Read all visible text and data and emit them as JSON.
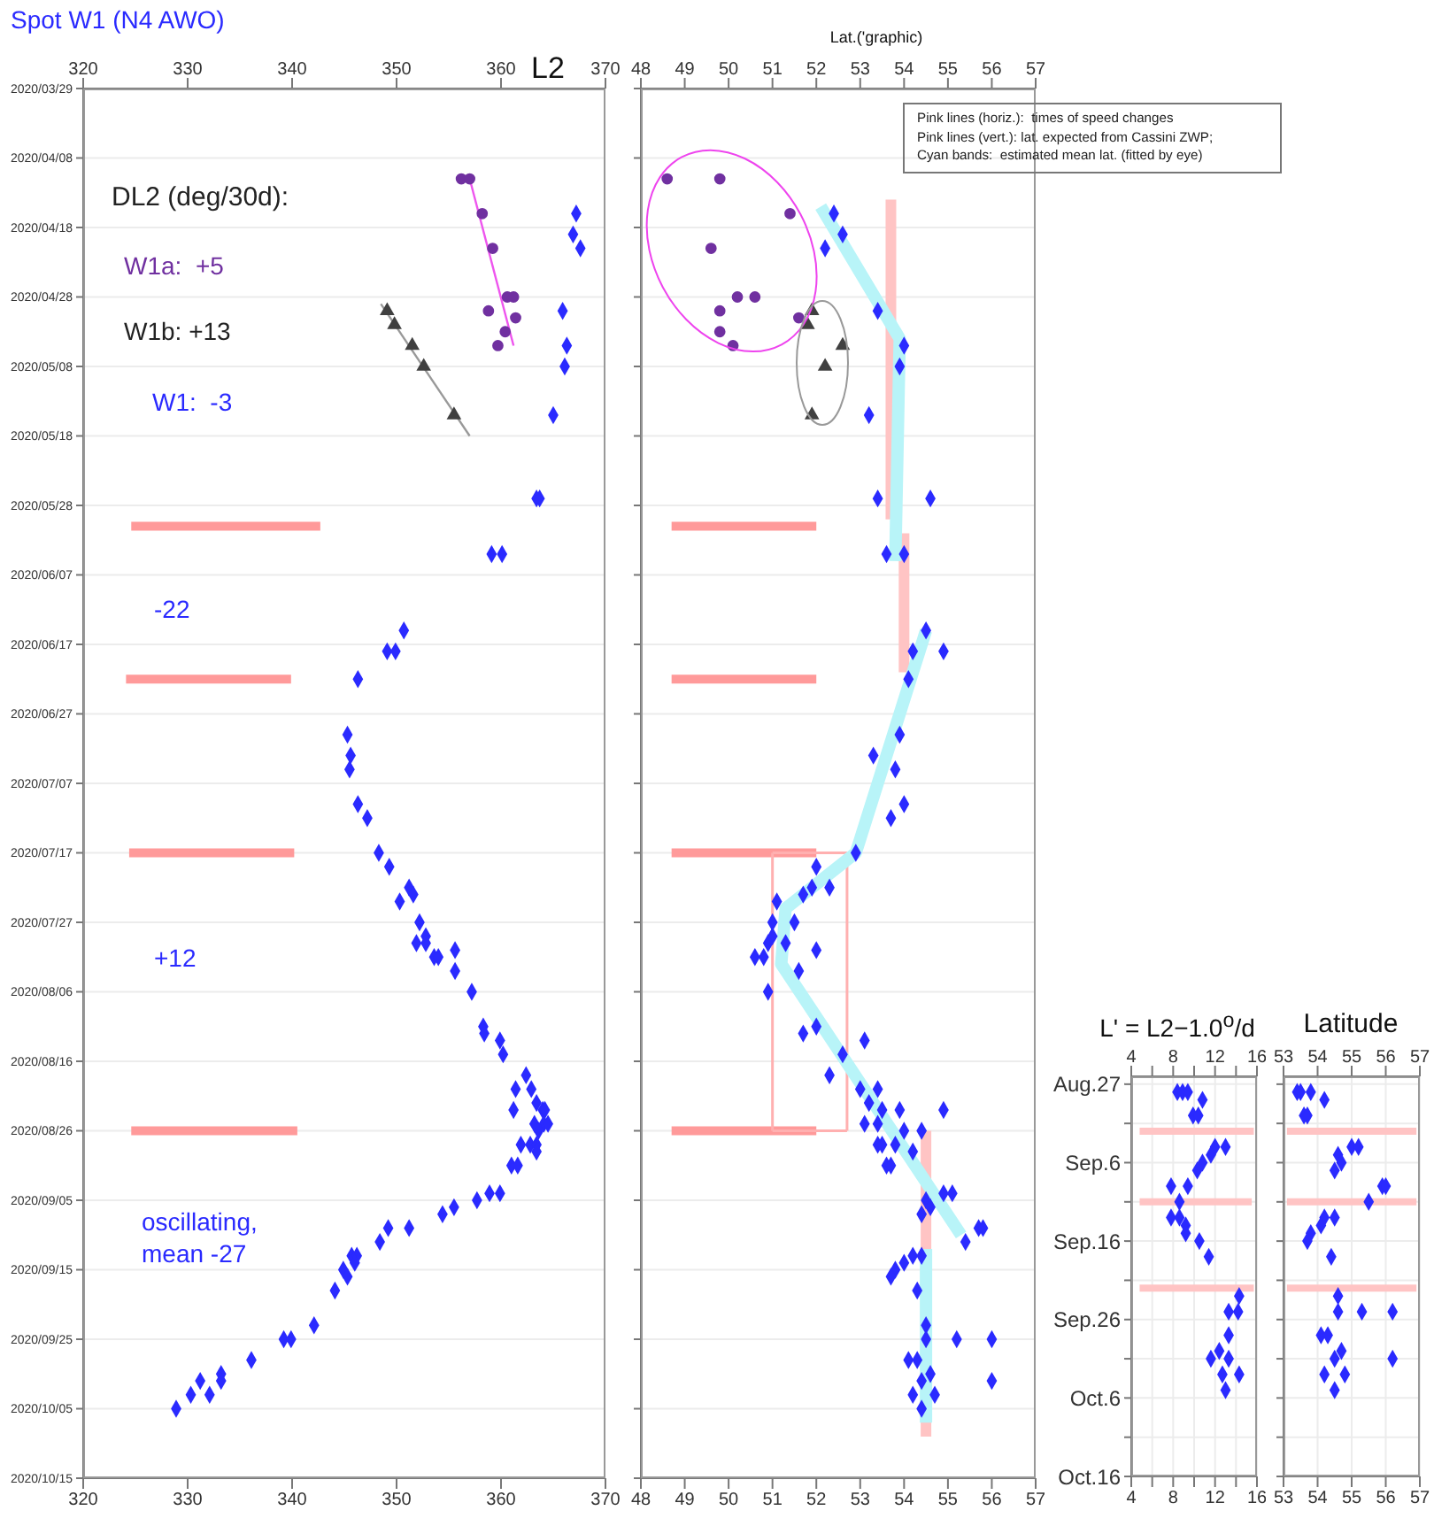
{
  "chart_data": [
    {
      "type": "scatter",
      "orientation": "horizontal",
      "title": "Spot W1 (N4 AWO)",
      "x2label": "L2",
      "xlim": [
        320,
        370
      ],
      "xticks": [
        320,
        330,
        340,
        350,
        360,
        370
      ],
      "x2lim": [
        320,
        370
      ],
      "x2ticks": [
        320,
        330,
        340,
        350,
        360,
        370
      ],
      "ylim": [
        "2020-10-15",
        "2020-03-29"
      ],
      "yticks": [
        {
          "value": "2020-03-29",
          "label": "2020/03/29"
        },
        {
          "value": "2020-04-08",
          "label": "2020/04/08"
        },
        {
          "value": "2020-04-18",
          "label": "2020/04/18"
        },
        {
          "value": "2020-04-28",
          "label": "2020/04/28"
        },
        {
          "value": "2020-05-08",
          "label": "2020/05/08"
        },
        {
          "value": "2020-05-18",
          "label": "2020/05/18"
        },
        {
          "value": "2020-05-28",
          "label": "2020/05/28"
        },
        {
          "value": "2020-06-07",
          "label": "2020/06/07"
        },
        {
          "value": "2020-06-17",
          "label": "2020/06/17"
        },
        {
          "value": "2020-06-27",
          "label": "2020/06/27"
        },
        {
          "value": "2020-07-07",
          "label": "2020/07/07"
        },
        {
          "value": "2020-07-17",
          "label": "2020/07/17"
        },
        {
          "value": "2020-07-27",
          "label": "2020/07/27"
        },
        {
          "value": "2020-08-06",
          "label": "2020/08/06"
        },
        {
          "value": "2020-08-16",
          "label": "2020/08/16"
        },
        {
          "value": "2020-08-26",
          "label": "2020/08/26"
        },
        {
          "value": "2020-09-05",
          "label": "2020/09/05"
        },
        {
          "value": "2020-09-15",
          "label": "2020/09/15"
        },
        {
          "value": "2020-09-25",
          "label": "2020/09/25"
        },
        {
          "value": "2020-10-05",
          "label": "2020/10/05"
        },
        {
          "value": "2020-10-15",
          "label": "2020/10/15"
        }
      ],
      "grid": "y",
      "annotations": [
        "DL2 (deg/30d):",
        "W1a:  +5",
        "W1b: +13",
        "W1:  -3",
        "-22",
        "+12",
        "oscillating, mean -27"
      ],
      "series": [
        {
          "type": "line",
          "marker": "none",
          "color": "#ff9a9a",
          "values": [
            324.6,
            342.7
          ],
          "x": [
            "2020-05-31",
            "2020-05-31"
          ]
        },
        {
          "type": "line",
          "marker": "none",
          "color": "#ff9a9a",
          "values": [
            324.1,
            339.9
          ],
          "x": [
            "2020-06-22",
            "2020-06-22"
          ]
        },
        {
          "type": "line",
          "marker": "none",
          "color": "#ff9a9a",
          "values": [
            324.4,
            340.2
          ],
          "x": [
            "2020-07-17",
            "2020-07-17"
          ]
        },
        {
          "type": "line",
          "marker": "none",
          "color": "#ff9a9a",
          "values": [
            324.6,
            340.5
          ],
          "x": [
            "2020-08-26",
            "2020-08-26"
          ]
        },
        {
          "type": "line",
          "marker": "none",
          "color": "#ee55ee",
          "values": [
            357.0,
            361.2
          ],
          "x": [
            "2020-04-11",
            "2020-05-05"
          ]
        },
        {
          "type": "line",
          "marker": "none",
          "color": "#999999",
          "values": [
            348.5,
            357.0
          ],
          "x": [
            "2020-04-29",
            "2020-05-18"
          ]
        },
        {
          "type": "scatter",
          "marker": "diamond",
          "color": "#2a2aff",
          "values": [
            367.2,
            366.9,
            367.6,
            365.9,
            366.3,
            366.1,
            365.0,
            363.4,
            363.7,
            359.1,
            360.1,
            350.7,
            349.1,
            349.9,
            346.3,
            345.3,
            345.6,
            345.5,
            346.3,
            347.2,
            348.3,
            349.3,
            351.2,
            351.6,
            350.3,
            352.2,
            352.8,
            352.8,
            351.9,
            355.6,
            353.6,
            354.0,
            355.6,
            357.2,
            358.3,
            358.4,
            359.9,
            360.2,
            362.4,
            361.4,
            362.9,
            363.4,
            361.2,
            364.0,
            364.2,
            363.2,
            364.1,
            364.5,
            363.6,
            361.9,
            362.8,
            363.4,
            363.4,
            361.0,
            361.6,
            358.9,
            359.9,
            357.7,
            355.5,
            354.4,
            349.2,
            351.2,
            348.4,
            345.7,
            346.2,
            346.0,
            344.9,
            345.3,
            344.1,
            342.1,
            339.2,
            339.9,
            336.1,
            333.2,
            331.2,
            333.2,
            330.3,
            332.1,
            328.9
          ],
          "x": [
            "2020-04-16",
            "2020-04-19",
            "2020-04-21",
            "2020-04-30",
            "2020-05-05",
            "2020-05-08",
            "2020-05-15",
            "2020-05-27",
            "2020-05-27",
            "2020-06-04",
            "2020-06-04",
            "2020-06-15",
            "2020-06-18",
            "2020-06-18",
            "2020-06-22",
            "2020-06-30",
            "2020-07-03",
            "2020-07-05",
            "2020-07-10",
            "2020-07-12",
            "2020-07-17",
            "2020-07-19",
            "2020-07-22",
            "2020-07-23",
            "2020-07-24",
            "2020-07-27",
            "2020-07-29",
            "2020-07-30",
            "2020-07-30",
            "2020-07-31",
            "2020-08-01",
            "2020-08-01",
            "2020-08-03",
            "2020-08-06",
            "2020-08-11",
            "2020-08-12",
            "2020-08-13",
            "2020-08-15",
            "2020-08-18",
            "2020-08-20",
            "2020-08-20",
            "2020-08-22",
            "2020-08-23",
            "2020-08-23",
            "2020-08-23",
            "2020-08-25",
            "2020-08-25",
            "2020-08-25",
            "2020-08-26",
            "2020-08-28",
            "2020-08-28",
            "2020-08-28",
            "2020-08-29",
            "2020-08-31",
            "2020-08-31",
            "2020-09-04",
            "2020-09-04",
            "2020-09-05",
            "2020-09-06",
            "2020-09-07",
            "2020-09-09",
            "2020-09-09",
            "2020-09-11",
            "2020-09-13",
            "2020-09-13",
            "2020-09-14",
            "2020-09-15",
            "2020-09-16",
            "2020-09-18",
            "2020-09-23",
            "2020-09-25",
            "2020-09-25",
            "2020-09-28",
            "2020-09-30",
            "2020-10-01",
            "2020-10-01",
            "2020-10-03",
            "2020-10-03",
            "2020-10-05"
          ]
        },
        {
          "type": "scatter",
          "marker": "circle",
          "color": "#7030a0",
          "values": [
            356.2,
            357.0,
            358.2,
            359.2,
            360.6,
            361.2,
            358.8,
            361.4,
            360.4,
            359.7
          ],
          "x": [
            "2020-04-11",
            "2020-04-11",
            "2020-04-16",
            "2020-04-21",
            "2020-04-28",
            "2020-04-28",
            "2020-04-30",
            "2020-05-01",
            "2020-05-03",
            "2020-05-05"
          ]
        },
        {
          "type": "scatter",
          "marker": "triangle",
          "color": "#404040",
          "values": [
            349.1,
            349.8,
            351.5,
            352.6,
            355.5
          ],
          "x": [
            "2020-04-30",
            "2020-05-02",
            "2020-05-05",
            "2020-05-08",
            "2020-05-15"
          ]
        }
      ]
    },
    {
      "type": "scatter",
      "orientation": "horizontal",
      "x2label": "Lat.('graphic)",
      "xlim": [
        48,
        57
      ],
      "xticks": [
        48,
        49,
        50,
        51,
        52,
        53,
        54,
        55,
        56,
        57
      ],
      "x2lim": [
        48,
        57
      ],
      "x2ticks": [
        48,
        49,
        50,
        51,
        52,
        53,
        54,
        55,
        56,
        57
      ],
      "ylim": [
        "2020-10-15",
        "2020-03-29"
      ],
      "yticks": [
        {
          "value": "2020-03-29",
          "label": "2020/03/29"
        },
        {
          "value": "2020-04-08",
          "label": "2020/04/08"
        },
        {
          "value": "2020-04-18",
          "label": "2020/04/18"
        },
        {
          "value": "2020-04-28",
          "label": "2020/04/28"
        },
        {
          "value": "2020-05-08",
          "label": "2020/05/08"
        },
        {
          "value": "2020-05-18",
          "label": "2020/05/18"
        },
        {
          "value": "2020-05-28",
          "label": "2020/05/28"
        },
        {
          "value": "2020-06-07",
          "label": "2020/06/07"
        },
        {
          "value": "2020-06-17",
          "label": "2020/06/17"
        },
        {
          "value": "2020-06-27",
          "label": "2020/06/27"
        },
        {
          "value": "2020-07-07",
          "label": "2020/07/07"
        },
        {
          "value": "2020-07-17",
          "label": "2020/07/17"
        },
        {
          "value": "2020-07-27",
          "label": "2020/07/27"
        },
        {
          "value": "2020-08-06",
          "label": "2020/08/06"
        },
        {
          "value": "2020-08-16",
          "label": "2020/08/16"
        },
        {
          "value": "2020-08-26",
          "label": "2020/08/26"
        },
        {
          "value": "2020-09-05",
          "label": "2020/09/05"
        },
        {
          "value": "2020-09-15",
          "label": "2020/09/15"
        },
        {
          "value": "2020-09-25",
          "label": "2020/09/25"
        },
        {
          "value": "2020-10-05",
          "label": "2020/10/05"
        },
        {
          "value": "2020-10-15",
          "label": "2020/10/15"
        }
      ],
      "grid": "y",
      "tick_labels": "x",
      "annotations": [
        "Pink lines (horiz.):  times of speed changes",
        "Pink lines (vert.): lat. expected from Cassini ZWP;",
        "Cyan bands:  estimated mean lat. (fitted by eye)"
      ],
      "series": [
        {
          "type": "line",
          "marker": "none",
          "color": "#ff9a9a",
          "values": [
            48.7,
            52.0
          ],
          "x": [
            "2020-05-31",
            "2020-05-31"
          ]
        },
        {
          "type": "line",
          "marker": "none",
          "color": "#ff9a9a",
          "values": [
            48.7,
            52.0
          ],
          "x": [
            "2020-06-22",
            "2020-06-22"
          ]
        },
        {
          "type": "line",
          "marker": "none",
          "color": "#ff9a9a",
          "values": [
            48.7,
            52.0
          ],
          "x": [
            "2020-07-17",
            "2020-07-17"
          ]
        },
        {
          "type": "line",
          "marker": "none",
          "color": "#ff9a9a",
          "values": [
            48.7,
            52.0
          ],
          "x": [
            "2020-08-26",
            "2020-08-26"
          ]
        },
        {
          "type": "line",
          "marker": "none",
          "color": "#ffc4c4",
          "values": [
            53.7,
            53.7
          ],
          "x": [
            "2020-04-14",
            "2020-05-30"
          ]
        },
        {
          "type": "line",
          "marker": "none",
          "color": "#ffc4c4",
          "values": [
            54.0,
            54.0
          ],
          "x": [
            "2020-06-01",
            "2020-06-21"
          ]
        },
        {
          "type": "line",
          "marker": "none",
          "color": "#ffc4c4",
          "values": [
            54.5,
            54.5
          ],
          "x": [
            "2020-08-26",
            "2020-10-09"
          ]
        },
        {
          "type": "line",
          "marker": "none",
          "color": "#ffb0b0",
          "values": [
            51.0,
            51.0
          ],
          "x": [
            "2020-07-17",
            "2020-08-26"
          ]
        },
        {
          "type": "line",
          "marker": "none",
          "color": "#ffb0b0",
          "values": [
            52.7,
            52.7
          ],
          "x": [
            "2020-07-17",
            "2020-08-26"
          ]
        },
        {
          "type": "line",
          "marker": "none",
          "color": "#ffb0b0",
          "values": [
            51.0,
            52.7
          ],
          "x": [
            "2020-07-17",
            "2020-07-17"
          ]
        },
        {
          "type": "line",
          "marker": "none",
          "color": "#ffb0b0",
          "values": [
            51.0,
            52.7
          ],
          "x": [
            "2020-08-26",
            "2020-08-26"
          ]
        },
        {
          "type": "line",
          "marker": "none",
          "color": "#b8f4f8",
          "values": [
            52.1,
            53.9,
            53.8
          ],
          "x": [
            "2020-04-15",
            "2020-05-04",
            "2020-06-05"
          ]
        },
        {
          "type": "line",
          "marker": "none",
          "color": "#b8f4f8",
          "values": [
            54.5,
            52.9,
            51.3,
            51.2,
            55.3
          ],
          "x": [
            "2020-06-15",
            "2020-07-17",
            "2020-07-25",
            "2020-08-02",
            "2020-09-10"
          ]
        },
        {
          "type": "line",
          "marker": "none",
          "color": "#b8f4f8",
          "values": [
            54.5,
            54.5
          ],
          "x": [
            "2020-09-12",
            "2020-10-07"
          ]
        },
        {
          "type": "scatter",
          "marker": "diamond",
          "color": "#2a2aff",
          "values": [
            52.4,
            52.6,
            52.2,
            53.4,
            54.0,
            53.9,
            53.2,
            53.4,
            54.6,
            53.6,
            54.0,
            54.5,
            54.2,
            54.9,
            54.1,
            53.9,
            53.3,
            53.8,
            54.0,
            53.7,
            52.9,
            52.0,
            51.9,
            52.3,
            51.7,
            51.1,
            51.0,
            51.5,
            51.0,
            50.9,
            51.3,
            52.0,
            50.6,
            50.8,
            51.6,
            50.9,
            52.0,
            51.7,
            53.1,
            52.6,
            52.3,
            53.0,
            53.4,
            53.2,
            53.5,
            53.9,
            54.9,
            53.1,
            53.4,
            54.0,
            54.4,
            53.4,
            53.5,
            53.8,
            54.2,
            53.6,
            53.7,
            54.9,
            55.1,
            54.5,
            54.6,
            54.4,
            55.7,
            55.8,
            55.4,
            54.2,
            54.4,
            54.0,
            53.8,
            53.7,
            54.3,
            54.5,
            54.5,
            55.2,
            56.0,
            54.1,
            54.3,
            54.6,
            54.4,
            56.0,
            54.2,
            54.7,
            54.4
          ],
          "x": [
            "2020-04-16",
            "2020-04-19",
            "2020-04-21",
            "2020-04-30",
            "2020-05-05",
            "2020-05-08",
            "2020-05-15",
            "2020-05-27",
            "2020-05-27",
            "2020-06-04",
            "2020-06-04",
            "2020-06-15",
            "2020-06-18",
            "2020-06-18",
            "2020-06-22",
            "2020-06-30",
            "2020-07-03",
            "2020-07-05",
            "2020-07-10",
            "2020-07-12",
            "2020-07-17",
            "2020-07-19",
            "2020-07-22",
            "2020-07-22",
            "2020-07-23",
            "2020-07-24",
            "2020-07-27",
            "2020-07-27",
            "2020-07-29",
            "2020-07-30",
            "2020-07-30",
            "2020-07-31",
            "2020-08-01",
            "2020-08-01",
            "2020-08-03",
            "2020-08-06",
            "2020-08-11",
            "2020-08-12",
            "2020-08-13",
            "2020-08-15",
            "2020-08-18",
            "2020-08-20",
            "2020-08-20",
            "2020-08-22",
            "2020-08-23",
            "2020-08-23",
            "2020-08-23",
            "2020-08-25",
            "2020-08-25",
            "2020-08-26",
            "2020-08-26",
            "2020-08-28",
            "2020-08-28",
            "2020-08-28",
            "2020-08-29",
            "2020-08-31",
            "2020-08-31",
            "2020-09-04",
            "2020-09-04",
            "2020-09-05",
            "2020-09-06",
            "2020-09-07",
            "2020-09-09",
            "2020-09-09",
            "2020-09-11",
            "2020-09-13",
            "2020-09-13",
            "2020-09-14",
            "2020-09-15",
            "2020-09-16",
            "2020-09-18",
            "2020-09-23",
            "2020-09-25",
            "2020-09-25",
            "2020-09-25",
            "2020-09-28",
            "2020-09-28",
            "2020-09-30",
            "2020-10-01",
            "2020-10-01",
            "2020-10-03",
            "2020-10-03",
            "2020-10-05"
          ]
        },
        {
          "type": "scatter",
          "marker": "circle",
          "color": "#7030a0",
          "values": [
            48.6,
            49.8,
            51.4,
            49.6,
            50.2,
            50.6,
            49.8,
            51.6,
            49.8,
            50.1
          ],
          "x": [
            "2020-04-11",
            "2020-04-11",
            "2020-04-16",
            "2020-04-21",
            "2020-04-28",
            "2020-04-28",
            "2020-04-30",
            "2020-05-01",
            "2020-05-03",
            "2020-05-05"
          ]
        },
        {
          "type": "scatter",
          "marker": "triangle",
          "color": "#404040",
          "values": [
            51.9,
            51.8,
            52.6,
            52.2,
            51.9
          ],
          "x": [
            "2020-04-30",
            "2020-05-02",
            "2020-05-05",
            "2020-05-08",
            "2020-05-15"
          ]
        }
      ]
    },
    {
      "type": "scatter",
      "orientation": "horizontal",
      "title": "L' = L2−1.0$^{o}$/d",
      "xlim": [
        4,
        16
      ],
      "xticks": [
        4,
        {
          "value": 6,
          "label": null
        },
        8,
        {
          "value": 10,
          "label": null
        },
        12,
        {
          "value": 14,
          "label": null
        },
        16
      ],
      "x2lim": [
        4,
        16
      ],
      "x2ticks": [
        4,
        {
          "value": 6,
          "label": null
        },
        8,
        {
          "value": 10,
          "label": null
        },
        12,
        {
          "value": 14,
          "label": null
        },
        16
      ],
      "ylim": [
        "--10-16",
        "--08-26"
      ],
      "yticks": [
        {
          "value": "--08-27",
          "label": "Aug.27"
        },
        {
          "value": "--09-01",
          "label": null
        },
        {
          "value": "--09-06",
          "label": "Sep.6"
        },
        {
          "value": "--09-11",
          "label": null
        },
        {
          "value": "--09-16",
          "label": "Sep.16"
        },
        {
          "value": "--09-21",
          "label": null
        },
        {
          "value": "--09-26",
          "label": "Sep.26"
        },
        {
          "value": "--10-01",
          "label": null
        },
        {
          "value": "--10-06",
          "label": "Oct.6"
        },
        {
          "value": "--10-11",
          "label": null
        },
        {
          "value": "--10-16",
          "label": "Oct.16"
        }
      ],
      "grid": true,
      "series": [
        {
          "type": "line",
          "marker": "none",
          "color": "#ffc4c4",
          "values": [
            4.8,
            15.7
          ],
          "x": [
            "--09-02",
            "--09-02"
          ]
        },
        {
          "type": "line",
          "marker": "none",
          "color": "#ffc4c4",
          "values": [
            4.8,
            15.5
          ],
          "x": [
            "--09-11",
            "--09-11"
          ]
        },
        {
          "type": "line",
          "marker": "none",
          "color": "#ffc4c4",
          "values": [
            4.8,
            15.7
          ],
          "x": [
            "--09-22",
            "--09-22"
          ]
        },
        {
          "type": "scatter",
          "marker": "diamond",
          "color": "#2a2aff",
          "values": [
            8.4,
            8.9,
            9.4,
            10.8,
            9.9,
            10.4,
            12.0,
            13.0,
            11.6,
            10.8,
            10.3,
            7.8,
            9.4,
            8.6,
            7.8,
            8.6,
            9.2,
            9.2,
            10.5,
            11.4,
            14.3,
            13.3,
            14.2,
            13.3,
            12.4,
            11.6,
            13.3,
            12.7,
            14.3,
            13.0
          ],
          "x": [
            "--08-28",
            "--08-28",
            "--08-28",
            "--08-29",
            "--08-31",
            "--08-31",
            "--09-04",
            "--09-04",
            "--09-05",
            "--09-06",
            "--09-07",
            "--09-09",
            "--09-09",
            "--09-11",
            "--09-13",
            "--09-13",
            "--09-14",
            "--09-15",
            "--09-16",
            "--09-18",
            "--09-23",
            "--09-25",
            "--09-25",
            "--09-28",
            "--09-30",
            "--10-01",
            "--10-01",
            "--10-03",
            "--10-03",
            "--10-05"
          ]
        }
      ]
    },
    {
      "type": "scatter",
      "orientation": "horizontal",
      "title": "Latitude",
      "xlim": [
        53,
        57
      ],
      "xticks": [
        53,
        54,
        55,
        56,
        57
      ],
      "x2lim": [
        53,
        57
      ],
      "x2ticks": [
        53,
        54,
        55,
        56,
        57
      ],
      "ylim": [
        "--10-16",
        "--08-26"
      ],
      "yticks": [
        {
          "value": "--08-27",
          "label": "Aug.27"
        },
        {
          "value": "--09-01",
          "label": null
        },
        {
          "value": "--09-06",
          "label": "Sep.6"
        },
        {
          "value": "--09-11",
          "label": null
        },
        {
          "value": "--09-16",
          "label": "Sep.16"
        },
        {
          "value": "--09-21",
          "label": null
        },
        {
          "value": "--09-26",
          "label": "Sep.26"
        },
        {
          "value": "--10-01",
          "label": null
        },
        {
          "value": "--10-06",
          "label": "Oct.6"
        },
        {
          "value": "--10-11",
          "label": null
        },
        {
          "value": "--10-16",
          "label": "Oct.16"
        }
      ],
      "grid": true,
      "tick_labels": "x",
      "series": [
        {
          "type": "line",
          "marker": "none",
          "color": "#ffc4c4",
          "values": [
            53.1,
            56.9
          ],
          "x": [
            "--09-02",
            "--09-02"
          ]
        },
        {
          "type": "line",
          "marker": "none",
          "color": "#ffc4c4",
          "values": [
            53.1,
            56.9
          ],
          "x": [
            "--09-11",
            "--09-11"
          ]
        },
        {
          "type": "line",
          "marker": "none",
          "color": "#ffc4c4",
          "values": [
            53.1,
            56.9
          ],
          "x": [
            "--09-22",
            "--09-22"
          ]
        },
        {
          "type": "scatter",
          "marker": "diamond",
          "color": "#2a2aff",
          "values": [
            53.4,
            53.5,
            53.8,
            54.2,
            53.6,
            53.7,
            55.0,
            55.2,
            54.6,
            54.7,
            54.5,
            55.9,
            56.0,
            55.5,
            54.2,
            54.5,
            54.1,
            53.8,
            53.7,
            54.4,
            54.6,
            54.6,
            55.3,
            56.2,
            54.1,
            54.3,
            54.7,
            54.5,
            56.2,
            54.2,
            54.8,
            54.5
          ],
          "x": [
            "--08-28",
            "--08-28",
            "--08-28",
            "--08-29",
            "--08-31",
            "--08-31",
            "--09-04",
            "--09-04",
            "--09-05",
            "--09-06",
            "--09-07",
            "--09-09",
            "--09-09",
            "--09-11",
            "--09-13",
            "--09-13",
            "--09-14",
            "--09-15",
            "--09-16",
            "--09-18",
            "--09-23",
            "--09-25",
            "--09-25",
            "--09-25",
            "--09-28",
            "--09-28",
            "--09-30",
            "--10-01",
            "--10-01",
            "--10-03",
            "--10-03",
            "--10-05"
          ]
        }
      ]
    }
  ]
}
